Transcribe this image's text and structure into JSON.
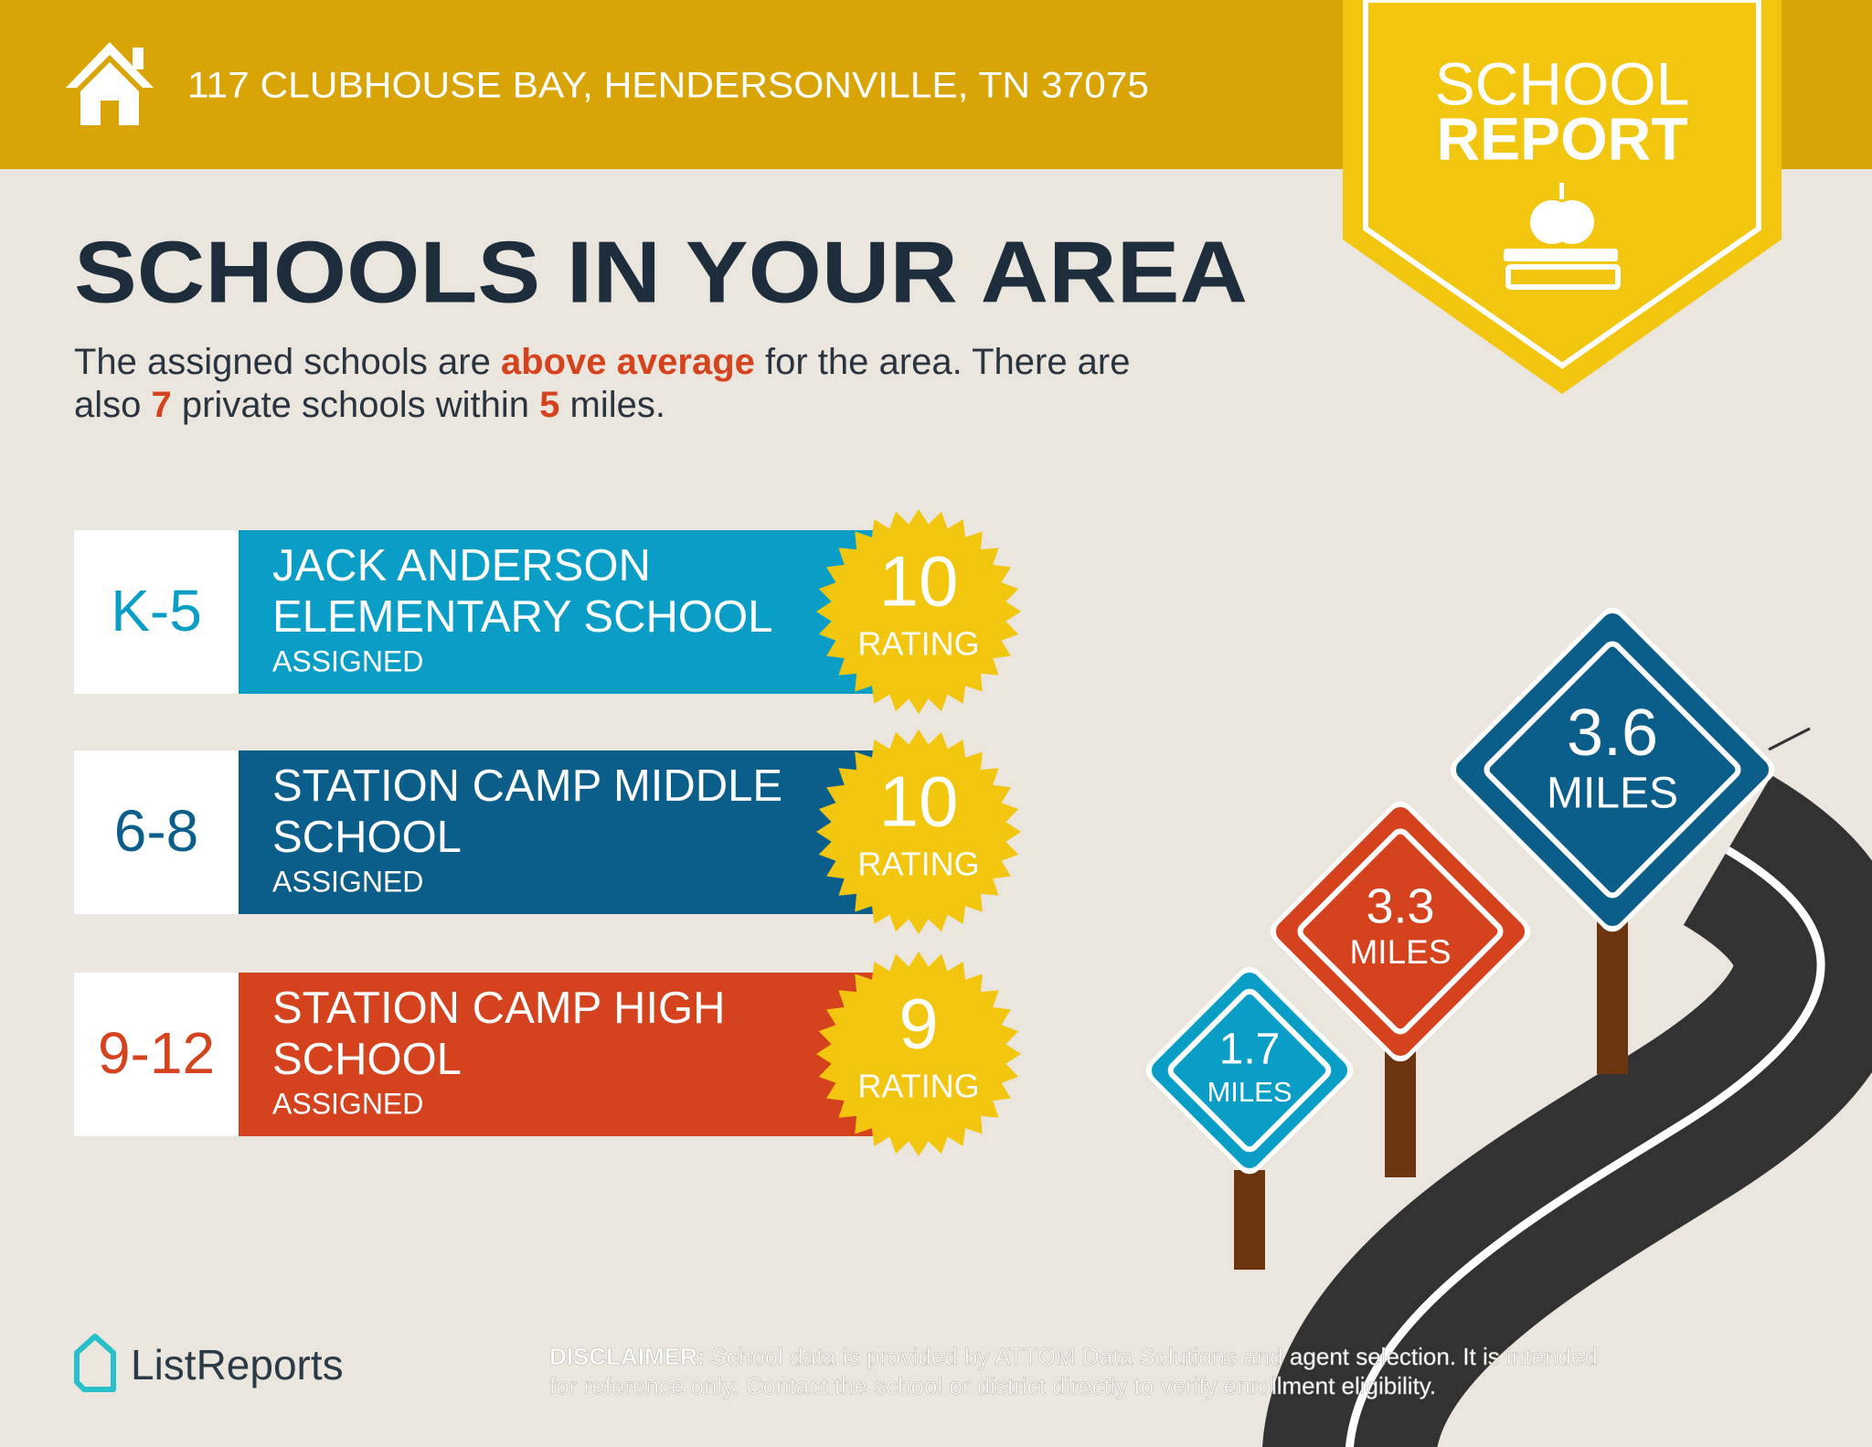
{
  "header": {
    "address": "117 CLUBHOUSE BAY, HENDERSONVILLE, TN 37075",
    "badge": [
      "SCHOOL",
      "REPORT"
    ]
  },
  "title": "SCHOOLS IN YOUR AREA",
  "subtitle": {
    "lines": [
      [
        "The assigned schools are ",
        "above average",
        " for the area. There are"
      ],
      [
        "also ",
        "7",
        " private schools within ",
        "5",
        " miles."
      ]
    ]
  },
  "schools": [
    {
      "grade": "K-5",
      "name": [
        "JACK ANDERSON",
        "ELEMENTARY SCHOOL"
      ],
      "status": "ASSIGNED",
      "rating": "10",
      "rating_label": "RATING"
    },
    {
      "grade": "6-8",
      "name": [
        "STATION CAMP MIDDLE",
        "SCHOOL"
      ],
      "status": "ASSIGNED",
      "rating": "10",
      "rating_label": "RATING"
    },
    {
      "grade": "9-12",
      "name": [
        "STATION CAMP HIGH",
        "SCHOOL"
      ],
      "status": "ASSIGNED",
      "rating": "9",
      "rating_label": "RATING"
    }
  ],
  "distances": [
    {
      "value": "3.6",
      "unit": "MILES"
    },
    {
      "value": "3.3",
      "unit": "MILES"
    },
    {
      "value": "1.7",
      "unit": "MILES"
    }
  ],
  "footer": {
    "brand": "ListReports",
    "disclaimer_label": "DISCLAIMER:",
    "disclaimer": [
      "School data is provided by ATTOM Data Solutions and agent selection. It is intended",
      "for reference only. Contact the school or district directly to verify enrollment eligibility."
    ]
  }
}
